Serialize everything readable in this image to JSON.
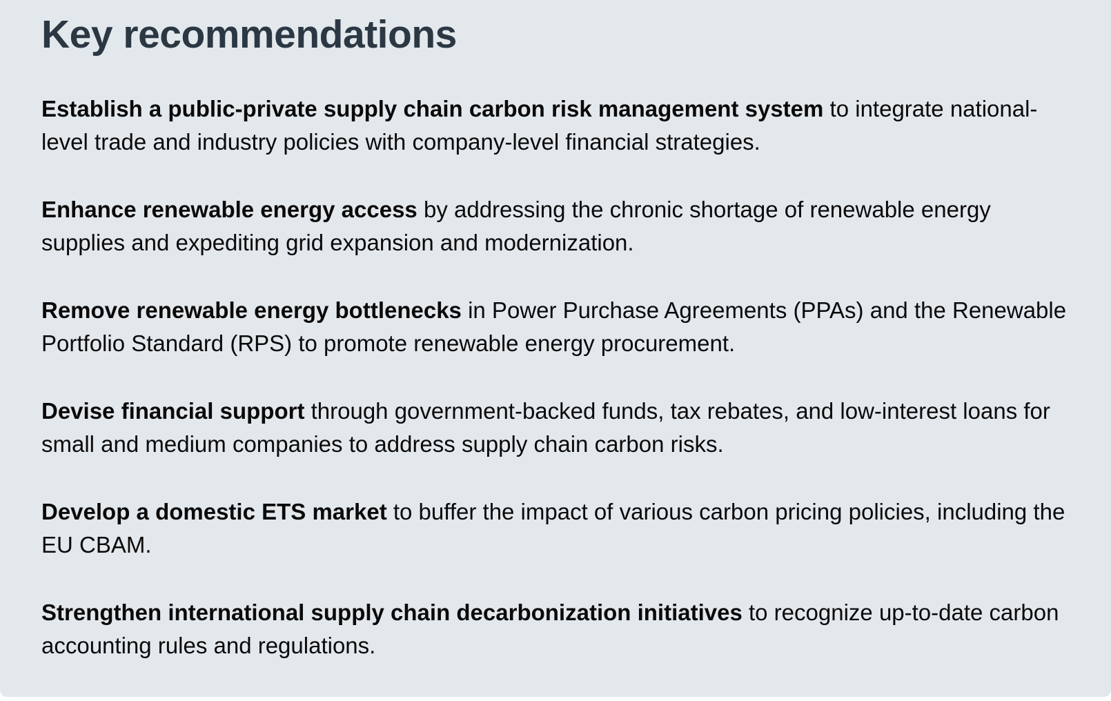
{
  "colors": {
    "page-bg": "#ffffff",
    "panel-bg": "#e3e8ec",
    "heading-color": "#2b3844",
    "body-color": "#0a0a0a"
  },
  "panel": {
    "title": "Key recommendations"
  },
  "paragraphs": [
    {
      "bold": "Establish a public-private supply chain carbon risk management system",
      "rest": " to integrate national-level trade and industry policies with company-level financial strategies."
    },
    {
      "bold": "Enhance renewable energy access",
      "rest": " by addressing the chronic shortage of renewable energy supplies and expediting grid expansion and modernization."
    },
    {
      "bold": "Remove renewable energy bottlenecks",
      "rest": " in Power Purchase Agreements (PPAs) and the Renewable Portfolio Standard (RPS) to promote renewable energy procurement."
    },
    {
      "bold": "Devise financial support",
      "rest": " through government-backed funds, tax rebates, and low-interest loans for small and medium companies to address supply chain carbon risks."
    },
    {
      "bold": "Develop a domestic ETS market",
      "rest": " to buffer the impact of various carbon pricing policies, including the EU CBAM."
    },
    {
      "bold": "Strengthen international supply chain decarbonization initiatives",
      "rest": " to recognize up-to-date carbon accounting rules and regulations."
    }
  ]
}
